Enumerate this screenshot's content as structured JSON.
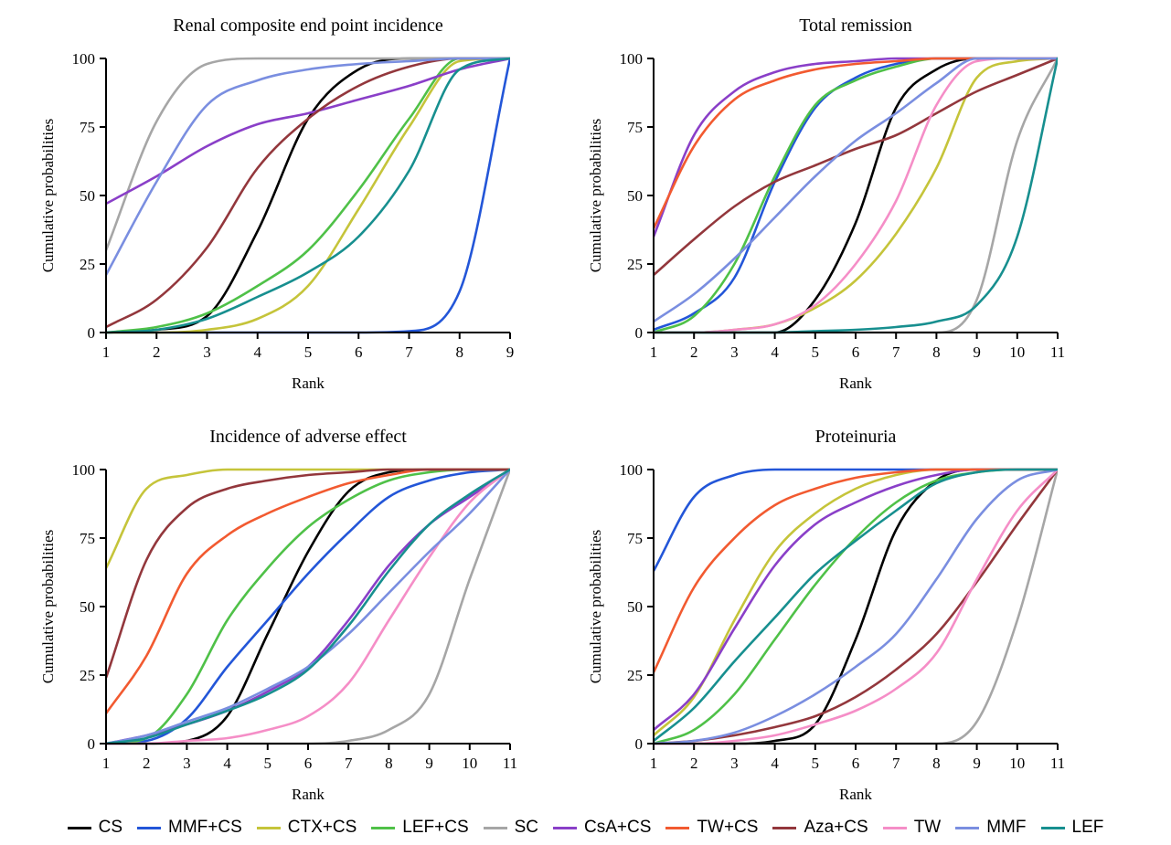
{
  "series_colors": {
    "CS": "#000000",
    "MMF+CS": "#2356d8",
    "CTX+CS": "#c5c43a",
    "LEF+CS": "#4fc148",
    "SC": "#a6a6a6",
    "CsA+CS": "#8a3fc8",
    "TW+CS": "#f25a30",
    "Aza+CS": "#93373c",
    "TW": "#f58ec7",
    "MMF": "#7a8ee0",
    "LEF": "#178f8f"
  },
  "legend": [
    "CS",
    "MMF+CS",
    "CTX+CS",
    "LEF+CS",
    "SC",
    "CsA+CS",
    "TW+CS",
    "Aza+CS",
    "TW",
    "MMF",
    "LEF"
  ],
  "chart_data": [
    {
      "type": "line",
      "title": "Renal composite end point incidence",
      "xlabel": "Rank",
      "ylabel": "Cumulative probabilities",
      "xlim": [
        1,
        9
      ],
      "ylim": [
        0,
        100
      ],
      "xticks": [
        1,
        2,
        3,
        4,
        5,
        6,
        7,
        8,
        9
      ],
      "yticks": [
        0,
        25,
        50,
        75,
        100
      ],
      "x": [
        1,
        2,
        3,
        4,
        5,
        6,
        7,
        8,
        9
      ],
      "series": [
        {
          "name": "CS",
          "values": [
            0,
            1,
            6,
            37,
            78,
            96,
            100,
            100,
            100
          ]
        },
        {
          "name": "MMF+CS",
          "values": [
            0,
            0,
            0,
            0,
            0,
            0,
            0.5,
            15,
            100
          ]
        },
        {
          "name": "CTX+CS",
          "values": [
            0,
            0,
            1,
            5,
            17,
            45,
            75,
            99,
            100
          ]
        },
        {
          "name": "LEF+CS",
          "values": [
            0,
            2,
            7,
            17,
            30,
            52,
            78,
            100,
            100
          ]
        },
        {
          "name": "SC",
          "values": [
            30,
            77,
            98,
            100,
            100,
            100,
            100,
            100,
            100
          ]
        },
        {
          "name": "CsA+CS",
          "values": [
            47,
            57,
            68,
            76,
            80,
            85,
            90,
            96,
            100
          ]
        },
        {
          "name": "Aza+CS",
          "values": [
            2,
            12,
            31,
            60,
            78,
            90,
            97,
            100,
            100
          ]
        },
        {
          "name": "MMF",
          "values": [
            21,
            55,
            83,
            92,
            96,
            98,
            99,
            100,
            100
          ]
        },
        {
          "name": "LEF",
          "values": [
            0,
            1,
            5,
            13,
            22,
            35,
            59,
            96,
            100
          ]
        }
      ]
    },
    {
      "type": "line",
      "title": "Total remission",
      "xlabel": "Rank",
      "ylabel": "Cumulative probabilities",
      "xlim": [
        1,
        11
      ],
      "ylim": [
        0,
        100
      ],
      "xticks": [
        1,
        2,
        3,
        4,
        5,
        6,
        7,
        8,
        9,
        10,
        11
      ],
      "yticks": [
        0,
        25,
        50,
        75,
        100
      ],
      "x": [
        1,
        2,
        3,
        4,
        5,
        6,
        7,
        8,
        9,
        10,
        11
      ],
      "series": [
        {
          "name": "CS",
          "values": [
            0,
            0,
            0,
            0,
            12,
            40,
            82,
            96,
            100,
            100,
            100
          ]
        },
        {
          "name": "MMF+CS",
          "values": [
            1,
            7,
            20,
            55,
            82,
            93,
            98,
            100,
            100,
            100,
            100
          ]
        },
        {
          "name": "CTX+CS",
          "values": [
            0,
            0,
            1,
            3,
            9,
            19,
            36,
            60,
            93,
            99,
            100
          ]
        },
        {
          "name": "LEF+CS",
          "values": [
            0,
            6,
            25,
            57,
            83,
            92,
            97,
            100,
            100,
            100,
            100
          ]
        },
        {
          "name": "SC",
          "values": [
            0,
            0,
            0,
            0,
            0,
            0,
            0,
            0,
            12,
            70,
            100
          ]
        },
        {
          "name": "CsA+CS",
          "values": [
            35,
            72,
            88,
            95,
            98,
            99,
            100,
            100,
            100,
            100,
            100
          ]
        },
        {
          "name": "TW+CS",
          "values": [
            38,
            68,
            85,
            92,
            96,
            98,
            99,
            100,
            100,
            100,
            100
          ]
        },
        {
          "name": "Aza+CS",
          "values": [
            21,
            34,
            46,
            55,
            61,
            67,
            72,
            80,
            88,
            94,
            100
          ]
        },
        {
          "name": "TW",
          "values": [
            0,
            0,
            1,
            3,
            10,
            25,
            48,
            83,
            99,
            100,
            100
          ]
        },
        {
          "name": "MMF",
          "values": [
            4,
            14,
            27,
            42,
            57,
            70,
            80,
            91,
            100,
            100,
            100
          ]
        },
        {
          "name": "LEF",
          "values": [
            0,
            0,
            0,
            0,
            0.5,
            1,
            2,
            4,
            10,
            35,
            100
          ]
        }
      ]
    },
    {
      "type": "line",
      "title": "Incidence of adverse effect",
      "xlabel": "Rank",
      "ylabel": "Cumulative probabilities",
      "xlim": [
        1,
        11
      ],
      "ylim": [
        0,
        100
      ],
      "xticks": [
        1,
        2,
        3,
        4,
        5,
        6,
        7,
        8,
        9,
        10,
        11
      ],
      "yticks": [
        0,
        25,
        50,
        75,
        100
      ],
      "x": [
        1,
        2,
        3,
        4,
        5,
        6,
        7,
        8,
        9,
        10,
        11
      ],
      "series": [
        {
          "name": "CS",
          "values": [
            0,
            0,
            1,
            10,
            40,
            70,
            92,
            99,
            100,
            100,
            100
          ]
        },
        {
          "name": "MMF+CS",
          "values": [
            0,
            1,
            9,
            28,
            45,
            62,
            77,
            90,
            96,
            99,
            100
          ]
        },
        {
          "name": "CTX+CS",
          "values": [
            64,
            93,
            98,
            100,
            100,
            100,
            100,
            100,
            100,
            100,
            100
          ]
        },
        {
          "name": "LEF+CS",
          "values": [
            0,
            2,
            18,
            45,
            64,
            79,
            89,
            96,
            99,
            100,
            100
          ]
        },
        {
          "name": "SC",
          "values": [
            0,
            0,
            0,
            0,
            0,
            0,
            1,
            5,
            18,
            60,
            100
          ]
        },
        {
          "name": "CsA+CS",
          "values": [
            0,
            3,
            7,
            12,
            19,
            28,
            45,
            65,
            80,
            90,
            100
          ]
        },
        {
          "name": "TW+CS",
          "values": [
            11,
            32,
            62,
            76,
            84,
            90,
            95,
            98,
            100,
            100,
            100
          ]
        },
        {
          "name": "Aza+CS",
          "values": [
            24,
            67,
            86,
            93,
            96,
            98,
            99,
            100,
            100,
            100,
            100
          ]
        },
        {
          "name": "TW",
          "values": [
            0,
            0,
            1,
            2,
            5,
            10,
            22,
            45,
            68,
            88,
            100
          ]
        },
        {
          "name": "MMF",
          "values": [
            0,
            3,
            8,
            13,
            20,
            28,
            40,
            55,
            70,
            84,
            100
          ]
        },
        {
          "name": "LEF",
          "values": [
            0,
            2,
            7,
            12,
            18,
            27,
            43,
            63,
            80,
            91,
            100
          ]
        }
      ]
    },
    {
      "type": "line",
      "title": "Proteinuria",
      "xlabel": "Rank",
      "ylabel": "Cumulative probabilities",
      "xlim": [
        1,
        11
      ],
      "ylim": [
        0,
        100
      ],
      "xticks": [
        1,
        2,
        3,
        4,
        5,
        6,
        7,
        8,
        9,
        10,
        11
      ],
      "yticks": [
        0,
        25,
        50,
        75,
        100
      ],
      "x": [
        1,
        2,
        3,
        4,
        5,
        6,
        7,
        8,
        9,
        10,
        11
      ],
      "series": [
        {
          "name": "CS",
          "values": [
            0,
            0,
            0,
            1,
            7,
            38,
            78,
            96,
            100,
            100,
            100
          ]
        },
        {
          "name": "MMF+CS",
          "values": [
            63,
            90,
            98,
            100,
            100,
            100,
            100,
            100,
            100,
            100,
            100
          ]
        },
        {
          "name": "CTX+CS",
          "values": [
            3,
            17,
            45,
            70,
            84,
            93,
            98,
            100,
            100,
            100,
            100
          ]
        },
        {
          "name": "LEF+CS",
          "values": [
            0,
            5,
            18,
            38,
            58,
            75,
            88,
            96,
            99,
            100,
            100
          ]
        },
        {
          "name": "SC",
          "values": [
            0,
            0,
            0,
            0,
            0,
            0,
            0,
            0,
            8,
            45,
            100
          ]
        },
        {
          "name": "CsA+CS",
          "values": [
            5,
            18,
            42,
            65,
            80,
            88,
            94,
            98,
            100,
            100,
            100
          ]
        },
        {
          "name": "TW+CS",
          "values": [
            26,
            57,
            75,
            87,
            93,
            97,
            99,
            100,
            100,
            100,
            100
          ]
        },
        {
          "name": "Aza+CS",
          "values": [
            0,
            1,
            3,
            6,
            10,
            17,
            27,
            40,
            59,
            80,
            100
          ]
        },
        {
          "name": "TW",
          "values": [
            0,
            0,
            1,
            3,
            7,
            12,
            20,
            33,
            60,
            85,
            100
          ]
        },
        {
          "name": "MMF",
          "values": [
            0,
            1,
            4,
            10,
            18,
            28,
            40,
            60,
            82,
            96,
            100
          ]
        },
        {
          "name": "LEF",
          "values": [
            1,
            13,
            30,
            46,
            62,
            74,
            85,
            95,
            99,
            100,
            100
          ]
        }
      ]
    }
  ]
}
